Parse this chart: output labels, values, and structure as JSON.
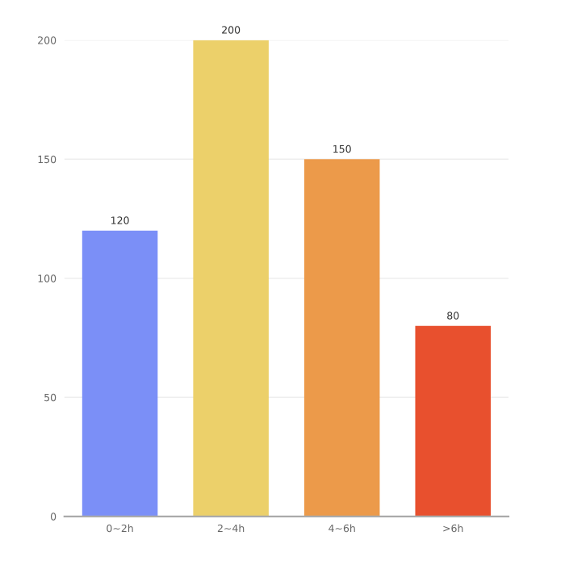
{
  "chart_data": {
    "type": "bar",
    "categories": [
      "0~2h",
      "2~4h",
      "4~6h",
      ">6h"
    ],
    "values": [
      120,
      200,
      150,
      80
    ],
    "colors": [
      "#7b8ff7",
      "#ecd06a",
      "#ec9a4a",
      "#e8502e"
    ],
    "ylim": [
      0,
      200
    ],
    "yticks": [
      0,
      50,
      100,
      150,
      200
    ],
    "grid": "y",
    "data_labels": true
  }
}
